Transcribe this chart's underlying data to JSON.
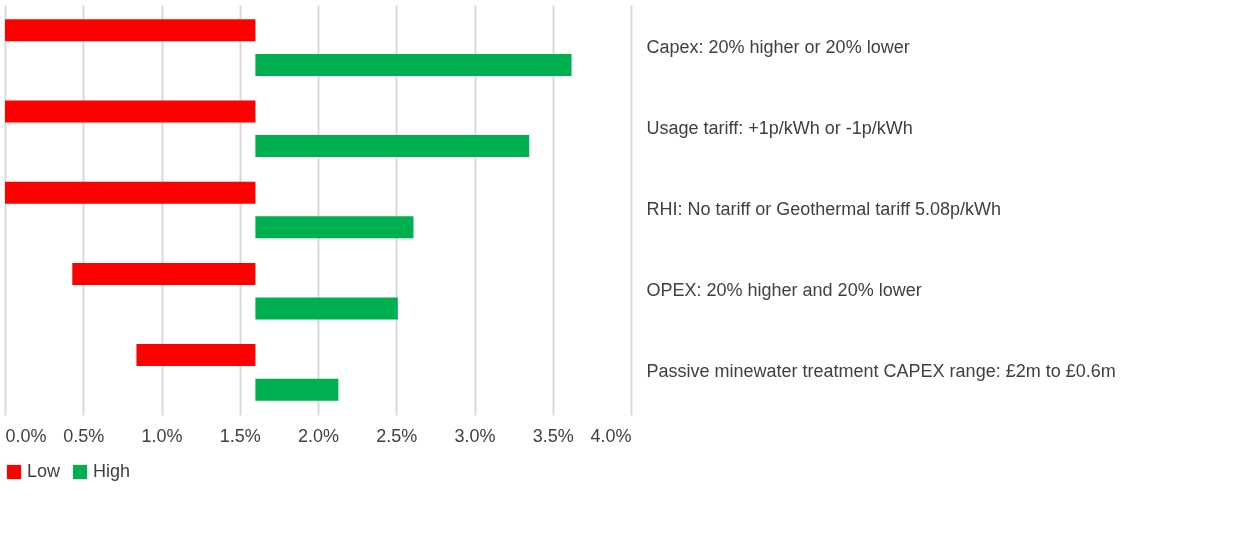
{
  "chart_data": {
    "type": "bar",
    "orientation": "horizontal",
    "categories": [
      "Capex: 20% higher or 20% lower",
      "Usage tariff: +1p/kWh or -1p/kWh",
      "RHI: No tariff or Geothermal tariff 5.08p/kWh",
      "OPEX: 20% higher and 20% lower",
      "Passive minewater treatment CAPEX range: £2m to £0.6m"
    ],
    "series": [
      {
        "name": "Low",
        "color": "#ff0000",
        "base": [
          0,
          0,
          0,
          0.43,
          0.84
        ],
        "values": [
          1.6,
          1.6,
          1.6,
          1.17,
          0.76
        ]
      },
      {
        "name": "High",
        "color": "#00b050",
        "base": [
          1.6,
          1.6,
          1.6,
          1.6,
          1.6
        ],
        "values": [
          2.02,
          1.75,
          1.01,
          0.91,
          0.53
        ]
      }
    ],
    "xlim": [
      0,
      4
    ],
    "xticks": [
      {
        "value": 0,
        "label": "0.0%"
      },
      {
        "value": 0.5,
        "label": "0.5%"
      },
      {
        "value": 1,
        "label": "1.0%"
      },
      {
        "value": 1.5,
        "label": "1.5%"
      },
      {
        "value": 2,
        "label": "2.0%"
      },
      {
        "value": 2.5,
        "label": "2.5%"
      },
      {
        "value": 3,
        "label": "3.0%"
      },
      {
        "value": 3.5,
        "label": "3.5%"
      },
      {
        "value": 4,
        "label": "4.0%"
      }
    ],
    "grid": "x",
    "legend": "bottom"
  }
}
